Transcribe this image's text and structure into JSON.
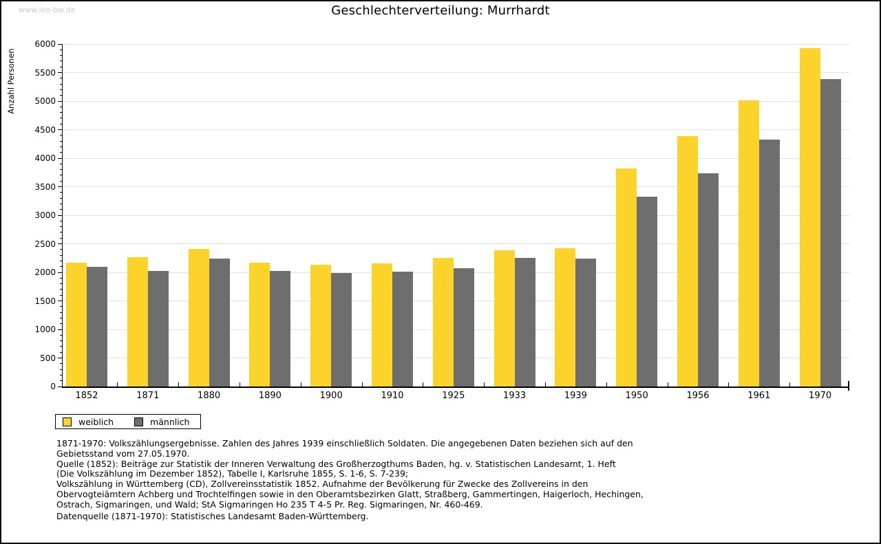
{
  "watermark": "www.leo-bw.de",
  "title": "Geschlechterverteilung: Murrhardt",
  "chart_data": {
    "type": "bar",
    "title": "Geschlechterverteilung: Murrhardt",
    "categories": [
      "1852",
      "1871",
      "1880",
      "1890",
      "1900",
      "1910",
      "1925",
      "1933",
      "1939",
      "1950",
      "1956",
      "1961",
      "1970"
    ],
    "series": [
      {
        "name": "weiblich",
        "color": "#FCD32B",
        "values": [
          2170,
          2260,
          2410,
          2170,
          2130,
          2160,
          2250,
          2390,
          2420,
          3820,
          4380,
          5010,
          5930
        ]
      },
      {
        "name": "männlich",
        "color": "#6E6E6E",
        "values": [
          2100,
          2020,
          2240,
          2020,
          1990,
          2010,
          2070,
          2250,
          2240,
          3330,
          3730,
          4320,
          5390
        ]
      }
    ],
    "xlabel": "",
    "ylabel": "Anzahl Personen",
    "ylim": [
      0,
      6000
    ],
    "ytick_step": 500,
    "y_minor_step": 100,
    "grid": true,
    "legend_position": "bottom-left"
  },
  "colors": {
    "grid": "#E0E0E0",
    "axis": "#000000",
    "watermark": "#CBCBCB"
  },
  "footnotes": [
    "1871-1970: Volkszählungsergebnisse. Zahlen des Jahres 1939 einschließlich Soldaten. Die angegebenen Daten beziehen sich auf den",
    "Gebietsstand vom 27.05.1970.",
    "Quelle (1852): Beiträge zur Statistik der Inneren Verwaltung des Großherzogthums Baden, hg. v. Statistischen Landesamt, 1. Heft",
    "(Die Volkszählung im Dezember 1852), Tabelle I, Karlsruhe 1855, S. 1-6, S. 7-239;",
    "Volkszählung in Württemberg (CD), Zollvereinsstatistik 1852. Aufnahme der Bevölkerung für Zwecke des Zollvereins in den",
    "Obervogteiämtern Achberg und Trochtelfingen sowie in den Oberamtsbezirken Glatt, Straßberg, Gammertingen, Haigerloch, Hechingen,",
    "Ostrach, Sigmaringen, und Wald; StA Sigmaringen Ho 235 T 4-5 Pr. Reg. Sigmaringen, Nr. 460-469."
  ],
  "datasource": "Datenquelle (1871-1970): Statistisches Landesamt Baden-Württemberg."
}
